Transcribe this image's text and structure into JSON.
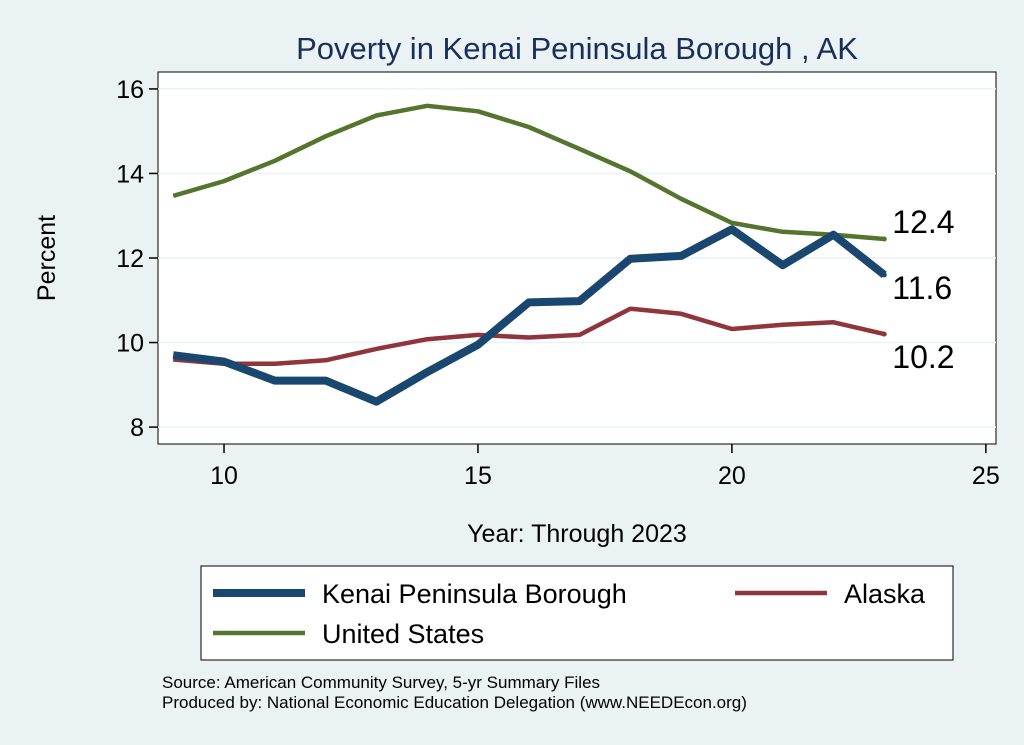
{
  "chart_data": {
    "type": "line",
    "title": "Poverty in Kenai Peninsula Borough , AK",
    "xlabel": "Year: Through 2023",
    "ylabel": "Percent",
    "xlim": [
      8.7,
      25.2
    ],
    "ylim": [
      7.6,
      16.4
    ],
    "xticks": [
      10,
      15,
      20,
      25
    ],
    "yticks": [
      8,
      10,
      12,
      14,
      16
    ],
    "grid": true,
    "legend_position": "bottom",
    "series": [
      {
        "name": "Kenai Peninsula Borough",
        "color": "#1a476f",
        "x": [
          9,
          10,
          11,
          12,
          13,
          14,
          15,
          16,
          17,
          18,
          19,
          20,
          21,
          22,
          23
        ],
        "values": [
          9.7,
          9.55,
          9.1,
          9.1,
          8.6,
          9.3,
          9.95,
          10.95,
          10.98,
          11.98,
          12.05,
          12.68,
          11.83,
          12.55,
          11.6
        ],
        "end_label": "11.6"
      },
      {
        "name": "Alaska",
        "color": "#90353b",
        "x": [
          9,
          10,
          11,
          12,
          13,
          14,
          15,
          16,
          17,
          18,
          19,
          20,
          21,
          22,
          23
        ],
        "values": [
          9.6,
          9.5,
          9.5,
          9.58,
          9.85,
          10.08,
          10.18,
          10.12,
          10.18,
          10.8,
          10.68,
          10.32,
          10.42,
          10.48,
          10.2
        ],
        "end_label": "10.2"
      },
      {
        "name": "United States",
        "color": "#55752f",
        "x": [
          9,
          10,
          11,
          12,
          13,
          14,
          15,
          16,
          17,
          18,
          19,
          20,
          21,
          22,
          23
        ],
        "values": [
          13.47,
          13.82,
          14.3,
          14.88,
          15.37,
          15.6,
          15.47,
          15.1,
          14.58,
          14.05,
          13.4,
          12.83,
          12.62,
          12.55,
          12.45
        ],
        "end_label": "12.4"
      }
    ],
    "notes": [
      "Source: American Community Survey, 5-yr Summary Files",
      "Produced by: National Economic Education Delegation (www.NEEDEcon.org)"
    ]
  }
}
